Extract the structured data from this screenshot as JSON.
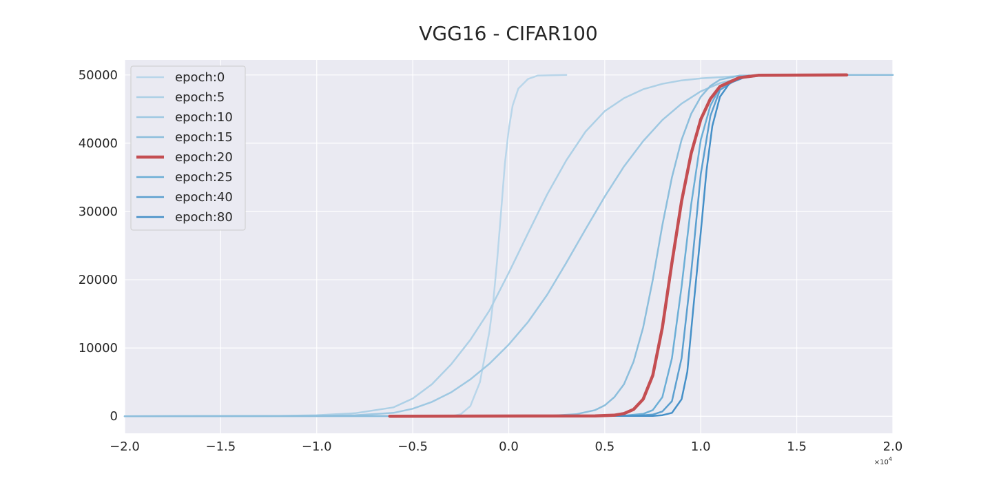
{
  "chart_data": {
    "type": "line",
    "title": "VGG16 - CIFAR100",
    "xlabel": "",
    "ylabel": "",
    "x_offset_label": "×10",
    "x_offset_exp": "4",
    "xlim": [
      -2.0,
      2.0
    ],
    "ylim": [
      -2500,
      52200
    ],
    "xticks": [
      -2.0,
      -1.5,
      -1.0,
      -0.5,
      0.0,
      0.5,
      1.0,
      1.5,
      2.0
    ],
    "xtick_labels": [
      "−2.0",
      "−1.5",
      "−1.0",
      "−0.5",
      "0.0",
      "0.5",
      "1.0",
      "1.5",
      "2.0"
    ],
    "yticks": [
      0,
      10000,
      20000,
      30000,
      40000,
      50000
    ],
    "ytick_labels": [
      "0",
      "10000",
      "20000",
      "30000",
      "40000",
      "50000"
    ],
    "grid": true,
    "legend_position": "upper-left",
    "background": "#eaeaf2",
    "series": [
      {
        "name": "epoch:0",
        "color": "#b9d6ea",
        "width": 2.5,
        "points": [
          [
            -2.0,
            0
          ],
          [
            -0.3,
            0
          ],
          [
            -0.25,
            300
          ],
          [
            -0.2,
            1500
          ],
          [
            -0.15,
            5000
          ],
          [
            -0.1,
            12500
          ],
          [
            -0.08,
            17000
          ],
          [
            -0.06,
            23000
          ],
          [
            -0.04,
            30000
          ],
          [
            -0.02,
            37000
          ],
          [
            0.0,
            42000
          ],
          [
            0.02,
            45500
          ],
          [
            0.05,
            48000
          ],
          [
            0.1,
            49400
          ],
          [
            0.15,
            49900
          ],
          [
            0.3,
            50000
          ]
        ]
      },
      {
        "name": "epoch:5",
        "color": "#add0e6",
        "width": 2.5,
        "points": [
          [
            -2.0,
            0
          ],
          [
            -1.2,
            50
          ],
          [
            -1.0,
            150
          ],
          [
            -0.8,
            450
          ],
          [
            -0.6,
            1300
          ],
          [
            -0.5,
            2600
          ],
          [
            -0.4,
            4700
          ],
          [
            -0.3,
            7600
          ],
          [
            -0.2,
            11200
          ],
          [
            -0.1,
            15500
          ],
          [
            0.0,
            21000
          ],
          [
            0.1,
            26800
          ],
          [
            0.2,
            32500
          ],
          [
            0.3,
            37500
          ],
          [
            0.4,
            41700
          ],
          [
            0.5,
            44700
          ],
          [
            0.6,
            46600
          ],
          [
            0.7,
            47900
          ],
          [
            0.8,
            48700
          ],
          [
            0.9,
            49200
          ],
          [
            1.0,
            49500
          ],
          [
            1.2,
            49850
          ],
          [
            1.5,
            50000
          ],
          [
            2.0,
            50000
          ]
        ]
      },
      {
        "name": "epoch:10",
        "color": "#9ec8e2",
        "width": 2.5,
        "points": [
          [
            -2.0,
            0
          ],
          [
            -1.0,
            50
          ],
          [
            -0.8,
            150
          ],
          [
            -0.6,
            500
          ],
          [
            -0.5,
            1100
          ],
          [
            -0.4,
            2100
          ],
          [
            -0.3,
            3500
          ],
          [
            -0.2,
            5400
          ],
          [
            -0.1,
            7700
          ],
          [
            0.0,
            10500
          ],
          [
            0.1,
            13800
          ],
          [
            0.2,
            17800
          ],
          [
            0.3,
            22500
          ],
          [
            0.4,
            27400
          ],
          [
            0.5,
            32200
          ],
          [
            0.6,
            36600
          ],
          [
            0.7,
            40300
          ],
          [
            0.8,
            43400
          ],
          [
            0.9,
            45800
          ],
          [
            1.0,
            47600
          ],
          [
            1.1,
            48800
          ],
          [
            1.2,
            49500
          ],
          [
            1.3,
            49850
          ],
          [
            1.5,
            50000
          ],
          [
            2.0,
            50000
          ]
        ]
      },
      {
        "name": "epoch:15",
        "color": "#8cbedc",
        "width": 2.5,
        "points": [
          [
            -2.0,
            0
          ],
          [
            0.2,
            50
          ],
          [
            0.35,
            300
          ],
          [
            0.45,
            900
          ],
          [
            0.5,
            1600
          ],
          [
            0.55,
            2800
          ],
          [
            0.6,
            4700
          ],
          [
            0.65,
            8000
          ],
          [
            0.7,
            13000
          ],
          [
            0.75,
            20000
          ],
          [
            0.8,
            28000
          ],
          [
            0.85,
            35000
          ],
          [
            0.9,
            40500
          ],
          [
            0.95,
            44300
          ],
          [
            1.0,
            46800
          ],
          [
            1.05,
            48400
          ],
          [
            1.1,
            49300
          ],
          [
            1.2,
            49900
          ],
          [
            1.5,
            50000
          ],
          [
            2.0,
            50000
          ]
        ]
      },
      {
        "name": "epoch:20",
        "color": "#c44e52",
        "width": 4.5,
        "points": [
          [
            -0.62,
            0
          ],
          [
            0.45,
            50
          ],
          [
            0.55,
            150
          ],
          [
            0.6,
            400
          ],
          [
            0.65,
            1000
          ],
          [
            0.7,
            2500
          ],
          [
            0.75,
            6000
          ],
          [
            0.8,
            13000
          ],
          [
            0.85,
            22500
          ],
          [
            0.9,
            31500
          ],
          [
            0.95,
            38500
          ],
          [
            1.0,
            43500
          ],
          [
            1.05,
            46500
          ],
          [
            1.1,
            48300
          ],
          [
            1.2,
            49600
          ],
          [
            1.3,
            49950
          ],
          [
            1.76,
            50000
          ]
        ]
      },
      {
        "name": "epoch:25",
        "color": "#6baed6",
        "width": 2.5,
        "points": [
          [
            -0.45,
            0
          ],
          [
            0.6,
            80
          ],
          [
            0.7,
            350
          ],
          [
            0.75,
            900
          ],
          [
            0.8,
            2800
          ],
          [
            0.85,
            8500
          ],
          [
            0.9,
            19000
          ],
          [
            0.95,
            31000
          ],
          [
            1.0,
            40500
          ],
          [
            1.05,
            45500
          ],
          [
            1.1,
            48200
          ],
          [
            1.2,
            49700
          ],
          [
            1.3,
            50000
          ],
          [
            1.75,
            50000
          ]
        ]
      },
      {
        "name": "epoch:40",
        "color": "#5b9fcf",
        "width": 2.5,
        "points": [
          [
            -0.45,
            0
          ],
          [
            0.65,
            50
          ],
          [
            0.75,
            250
          ],
          [
            0.8,
            700
          ],
          [
            0.85,
            2200
          ],
          [
            0.9,
            8500
          ],
          [
            0.95,
            21000
          ],
          [
            1.0,
            35500
          ],
          [
            1.05,
            44000
          ],
          [
            1.1,
            47800
          ],
          [
            1.2,
            49600
          ],
          [
            1.3,
            50000
          ],
          [
            1.75,
            50000
          ]
        ]
      },
      {
        "name": "epoch:80",
        "color": "#4590c8",
        "width": 2.5,
        "points": [
          [
            -0.45,
            0
          ],
          [
            0.75,
            50
          ],
          [
            0.8,
            150
          ],
          [
            0.85,
            500
          ],
          [
            0.9,
            2500
          ],
          [
            0.93,
            6500
          ],
          [
            0.96,
            15500
          ],
          [
            1.0,
            27000
          ],
          [
            1.03,
            36000
          ],
          [
            1.06,
            42500
          ],
          [
            1.1,
            46800
          ],
          [
            1.15,
            48800
          ],
          [
            1.25,
            49900
          ],
          [
            1.75,
            50000
          ]
        ]
      }
    ]
  }
}
